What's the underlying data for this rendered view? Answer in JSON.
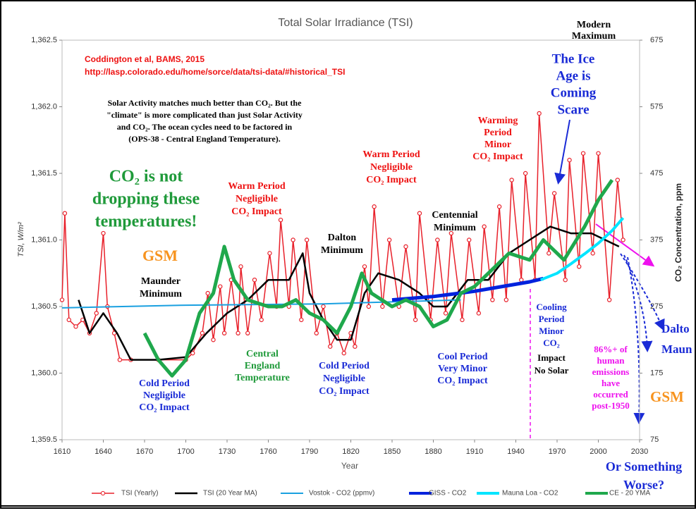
{
  "chart_data": {
    "type": "line",
    "title": "Total Solar Irradiance (TSI)",
    "x_label": "Year",
    "y_label": "TSI, W/m²",
    "y2_label": "CO₂ Concentration, ppm",
    "xlim": [
      1610,
      2030
    ],
    "xticks": [
      1610,
      1640,
      1670,
      1700,
      1730,
      1760,
      1790,
      1820,
      1850,
      1880,
      1910,
      1940,
      1970,
      2000,
      2030
    ],
    "ylim": [
      1359.5,
      1362.5
    ],
    "yticks": [
      {
        "value": 1359.5,
        "label": "1,359.5"
      },
      {
        "value": 1360.0,
        "label": "1,360.0"
      },
      {
        "value": 1360.5,
        "label": "1,360.5"
      },
      {
        "value": 1361.0,
        "label": "1,361.0"
      },
      {
        "value": 1361.5,
        "label": "1,361.5"
      },
      {
        "value": 1362.0,
        "label": "1,362.0"
      },
      {
        "value": 1362.5,
        "label": "1,362.5"
      }
    ],
    "y2lim": [
      75,
      675
    ],
    "y2ticks": [
      75,
      175,
      275,
      375,
      475,
      575,
      675
    ],
    "legend": "bottom",
    "series": [
      {
        "name": "TSI (Yearly)",
        "color": "#e8202a",
        "markers": true,
        "x": [
          1610,
          1612,
          1615,
          1620,
          1625,
          1630,
          1635,
          1640,
          1643,
          1648,
          1652,
          1660,
          1680,
          1700,
          1705,
          1712,
          1716,
          1720,
          1725,
          1728,
          1733,
          1738,
          1740,
          1745,
          1750,
          1755,
          1761,
          1766,
          1769,
          1775,
          1778,
          1784,
          1788,
          1795,
          1800,
          1805,
          1810,
          1815,
          1820,
          1823,
          1830,
          1833,
          1837,
          1843,
          1848,
          1855,
          1860,
          1867,
          1870,
          1878,
          1883,
          1889,
          1893,
          1901,
          1906,
          1913,
          1917,
          1923,
          1928,
          1933,
          1937,
          1944,
          1947,
          1954,
          1957,
          1964,
          1968,
          1976,
          1979,
          1986,
          1989,
          1996,
          2000,
          2008,
          2014,
          2018
        ],
        "values": [
          1360.55,
          1361.2,
          1360.4,
          1360.35,
          1360.4,
          1360.3,
          1360.45,
          1361.05,
          1360.5,
          1360.3,
          1360.1,
          1360.1,
          1360.1,
          1360.1,
          1360.15,
          1360.3,
          1360.6,
          1360.25,
          1360.65,
          1360.3,
          1360.7,
          1360.3,
          1360.8,
          1360.3,
          1360.7,
          1360.4,
          1360.9,
          1360.5,
          1361.15,
          1360.5,
          1361.0,
          1360.4,
          1361.0,
          1360.3,
          1360.5,
          1360.2,
          1360.3,
          1360.15,
          1360.3,
          1360.2,
          1360.8,
          1360.5,
          1361.25,
          1360.5,
          1361.0,
          1360.5,
          1360.95,
          1360.4,
          1361.2,
          1360.4,
          1361.0,
          1360.45,
          1361.05,
          1360.4,
          1361.0,
          1360.45,
          1361.1,
          1360.55,
          1361.25,
          1360.55,
          1361.45,
          1360.7,
          1361.5,
          1360.7,
          1361.95,
          1360.9,
          1361.35,
          1360.7,
          1361.6,
          1360.8,
          1361.65,
          1360.9,
          1361.65,
          1360.55,
          1361.45,
          1361.0
        ]
      },
      {
        "name": "TSI (20 Year MA)",
        "color": "#000000",
        "x": [
          1622,
          1630,
          1640,
          1650,
          1660,
          1680,
          1700,
          1715,
          1730,
          1745,
          1760,
          1775,
          1785,
          1790,
          1800,
          1810,
          1820,
          1830,
          1840,
          1855,
          1870,
          1880,
          1890,
          1905,
          1920,
          1935,
          1950,
          1965,
          1980,
          1995,
          2005,
          2015
        ],
        "values": [
          1360.55,
          1360.3,
          1360.45,
          1360.3,
          1360.1,
          1360.1,
          1360.12,
          1360.3,
          1360.45,
          1360.55,
          1360.7,
          1360.7,
          1360.9,
          1360.6,
          1360.4,
          1360.25,
          1360.25,
          1360.6,
          1360.75,
          1360.7,
          1360.6,
          1360.5,
          1360.5,
          1360.7,
          1360.7,
          1360.9,
          1361.0,
          1361.1,
          1361.05,
          1361.05,
          1361.0,
          1360.95
        ]
      },
      {
        "name": "Vostok - CO2 (ppmv)",
        "color": "#1aa0e0",
        "axis": "y2",
        "x": [
          1610,
          1700,
          1800,
          1850,
          1900
        ],
        "values": [
          273,
          277,
          279,
          282,
          285
        ]
      },
      {
        "name": "GISS - CO2",
        "color": "#0022dd",
        "axis": "y2",
        "x": [
          1850,
          1880,
          1910,
          1930,
          1950,
          1960
        ],
        "values": [
          285,
          290,
          298,
          305,
          312,
          317
        ]
      },
      {
        "name": "Mauna Loa - CO2",
        "color": "#00e5ff",
        "axis": "y2",
        "x": [
          1958,
          1970,
          1980,
          1990,
          2000,
          2010,
          2018
        ],
        "values": [
          315,
          325,
          339,
          354,
          370,
          389,
          408
        ]
      },
      {
        "name": "CE - 20 YMA",
        "color": "#1fa84c",
        "x": [
          1670,
          1680,
          1690,
          1700,
          1710,
          1720,
          1728,
          1735,
          1745,
          1760,
          1770,
          1780,
          1790,
          1800,
          1810,
          1820,
          1828,
          1835,
          1850,
          1860,
          1870,
          1880,
          1890,
          1900,
          1910,
          1920,
          1935,
          1950,
          1960,
          1975,
          1990,
          2000,
          2010
        ],
        "values": [
          1360.3,
          1360.1,
          1359.98,
          1360.1,
          1360.45,
          1360.6,
          1360.95,
          1360.7,
          1360.55,
          1360.5,
          1360.5,
          1360.55,
          1360.45,
          1360.4,
          1360.3,
          1360.5,
          1360.75,
          1360.6,
          1360.5,
          1360.55,
          1360.5,
          1360.35,
          1360.4,
          1360.6,
          1360.65,
          1360.75,
          1360.9,
          1360.85,
          1361.0,
          1360.85,
          1361.1,
          1361.3,
          1361.45
        ]
      }
    ],
    "annotations": [
      {
        "lines": [
          "Coddington et al, BAMS, 2015",
          "http://lasp.colorado.edu/home/sorce/data/tsi-data/#historical_TSI"
        ],
        "color": "#ee1111"
      },
      {
        "lines": [
          "Solar Activity matches much better than CO₂. But the",
          "\"climate\" is more complicated than just Solar Activity",
          "and CO₂. The ocean cycles need to be factored in",
          "(OPS-38 - Central England Temperature)."
        ],
        "color": "#000000"
      },
      {
        "lines": [
          "CO₂ is not",
          "dropping these",
          "temperatures!"
        ],
        "color": "#1f9a3a"
      },
      {
        "lines": [
          "GSM"
        ],
        "color": "#f7931e"
      },
      {
        "lines": [
          "Maunder",
          "Minimum"
        ],
        "color": "#000000"
      },
      {
        "lines": [
          "Cold Period",
          "Negligible",
          "CO₂ Impact"
        ],
        "color": "#1a2bd6"
      },
      {
        "lines": [
          "Warm Period",
          "Negligible",
          "CO₂ Impact"
        ],
        "color": "#ee1111"
      },
      {
        "lines": [
          "Dalton",
          "Minimum"
        ],
        "color": "#000000"
      },
      {
        "lines": [
          "Central",
          "England",
          "Temperature"
        ],
        "color": "#1f9a3a"
      },
      {
        "lines": [
          "Cold Period",
          "Negligible",
          "CO₂ Impact"
        ],
        "color": "#1a2bd6"
      },
      {
        "lines": [
          "Warm Period",
          "Negligible",
          "CO₂ Impact"
        ],
        "color": "#ee1111"
      },
      {
        "lines": [
          "Centennial",
          "Minimum"
        ],
        "color": "#000000"
      },
      {
        "lines": [
          "Cool Period",
          "Very Minor",
          "CO₂ Impact"
        ],
        "color": "#1a2bd6"
      },
      {
        "lines": [
          "Warming",
          "Period",
          "Minor",
          "CO₂ Impact"
        ],
        "color": "#ee1111"
      },
      {
        "lines": [
          "The Ice",
          "Age is",
          "Coming",
          "Scare"
        ],
        "color": "#1a2bd6"
      },
      {
        "lines": [
          "Modern",
          "Maximum"
        ],
        "color": "#000000"
      },
      {
        "lines": [
          "Cooling",
          "Period",
          "Minor",
          "CO₂"
        ],
        "color": "#1a2bd6"
      },
      {
        "lines": [
          "Impact",
          "No Solar"
        ],
        "color": "#000000"
      },
      {
        "lines": [
          "86%+ of",
          "human",
          "emissions",
          "have",
          "occurred",
          "post-1950"
        ],
        "color": "#ee11ee"
      },
      {
        "lines": [
          "Dalto",
          "Maun"
        ],
        "color": "#1a2bd6"
      },
      {
        "lines": [
          "GSM"
        ],
        "color": "#f7931e"
      },
      {
        "lines": [
          "Or Something",
          "Worse?"
        ],
        "color": "#1a2bd6"
      }
    ]
  }
}
